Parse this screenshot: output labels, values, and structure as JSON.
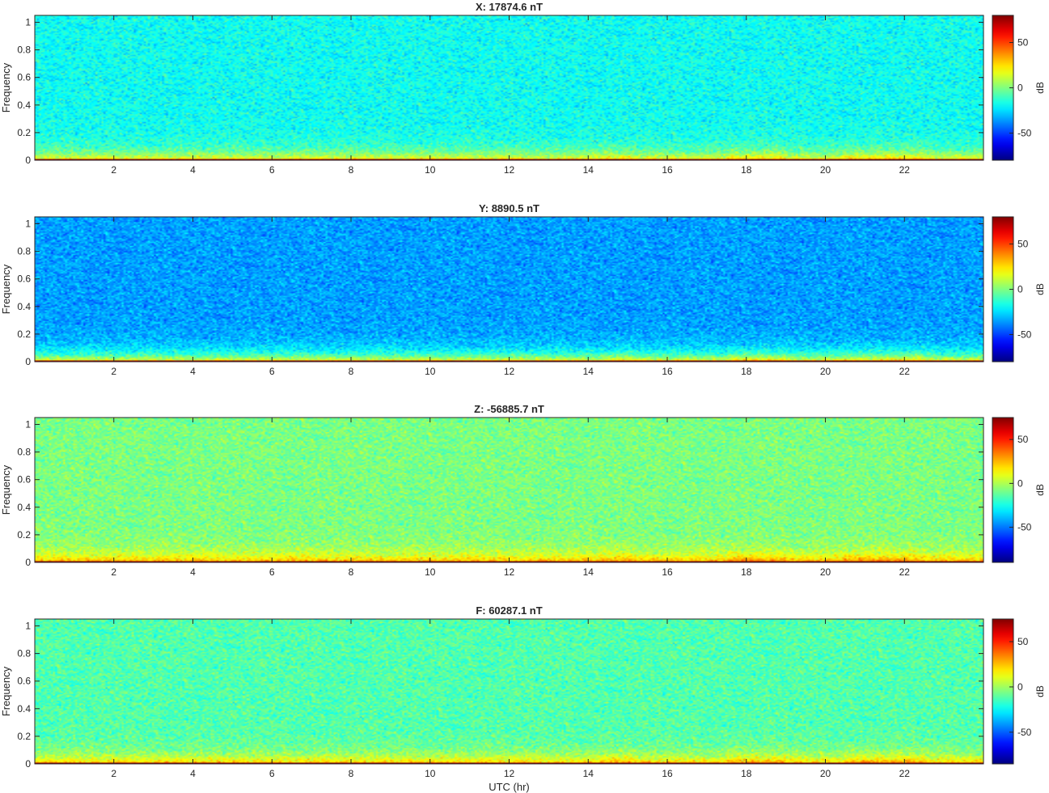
{
  "figure": {
    "xlabel": "UTC (hr)"
  },
  "colors": {
    "colormap": "jet",
    "low_noise_band": "#ffcc00",
    "zero_freq_line": "#b40000"
  },
  "chart_data": [
    {
      "type": "heatmap",
      "title": "X: 17874.6 nT",
      "xlabel": "",
      "ylabel": "Frequency",
      "xlim": [
        0,
        24
      ],
      "ylim": [
        0,
        1.05
      ],
      "xticks": [
        2,
        4,
        6,
        8,
        10,
        12,
        14,
        16,
        18,
        20,
        22
      ],
      "yticks": [
        0,
        0.2,
        0.4,
        0.6,
        0.8,
        1
      ],
      "colorbar": {
        "label": "dB",
        "range": [
          -80,
          80
        ],
        "ticks": [
          -50,
          0,
          50
        ]
      },
      "background_level_db": -18,
      "low_band_level_db": 25,
      "zero_line_level_db": 75,
      "enhanced_intervals_hr": [
        [
          17.5,
          19.0
        ],
        [
          20.5,
          22.5
        ]
      ]
    },
    {
      "type": "heatmap",
      "title": "Y: 8890.5 nT",
      "xlabel": "",
      "ylabel": "Frequency",
      "xlim": [
        0,
        24
      ],
      "ylim": [
        0,
        1.05
      ],
      "xticks": [
        2,
        4,
        6,
        8,
        10,
        12,
        14,
        16,
        18,
        20,
        22
      ],
      "yticks": [
        0,
        0.2,
        0.4,
        0.6,
        0.8,
        1
      ],
      "colorbar": {
        "label": "dB",
        "range": [
          -80,
          80
        ],
        "ticks": [
          -50,
          0,
          50
        ]
      },
      "background_level_db": -35,
      "low_band_level_db": 25,
      "zero_line_level_db": 75,
      "enhanced_intervals_hr": [
        [
          17.5,
          19.0
        ],
        [
          20.5,
          22.5
        ]
      ]
    },
    {
      "type": "heatmap",
      "title": "Z: -56885.7 nT",
      "xlabel": "",
      "ylabel": "Frequency",
      "xlim": [
        0,
        24
      ],
      "ylim": [
        0,
        1.05
      ],
      "xticks": [
        2,
        4,
        6,
        8,
        10,
        12,
        14,
        16,
        18,
        20,
        22
      ],
      "yticks": [
        0,
        0.2,
        0.4,
        0.6,
        0.8,
        1
      ],
      "colorbar": {
        "label": "dB",
        "range": [
          -90,
          75
        ],
        "ticks": [
          -50,
          0,
          50
        ]
      },
      "background_level_db": -8,
      "low_band_level_db": 30,
      "zero_line_level_db": 72,
      "enhanced_intervals_hr": [
        [
          17.5,
          19.0
        ],
        [
          20.5,
          22.5
        ]
      ]
    },
    {
      "type": "heatmap",
      "title": "F: 60287.1 nT",
      "xlabel": "UTC (hr)",
      "ylabel": "Frequency",
      "xlim": [
        0,
        24
      ],
      "ylim": [
        0,
        1.05
      ],
      "xticks": [
        2,
        4,
        6,
        8,
        10,
        12,
        14,
        16,
        18,
        20,
        22
      ],
      "yticks": [
        0,
        0.2,
        0.4,
        0.6,
        0.8,
        1
      ],
      "colorbar": {
        "label": "dB",
        "range": [
          -85,
          75
        ],
        "ticks": [
          -50,
          0,
          50
        ]
      },
      "background_level_db": -12,
      "low_band_level_db": 28,
      "zero_line_level_db": 72,
      "enhanced_intervals_hr": [
        [
          17.5,
          19.0
        ],
        [
          20.5,
          22.5
        ]
      ]
    }
  ]
}
